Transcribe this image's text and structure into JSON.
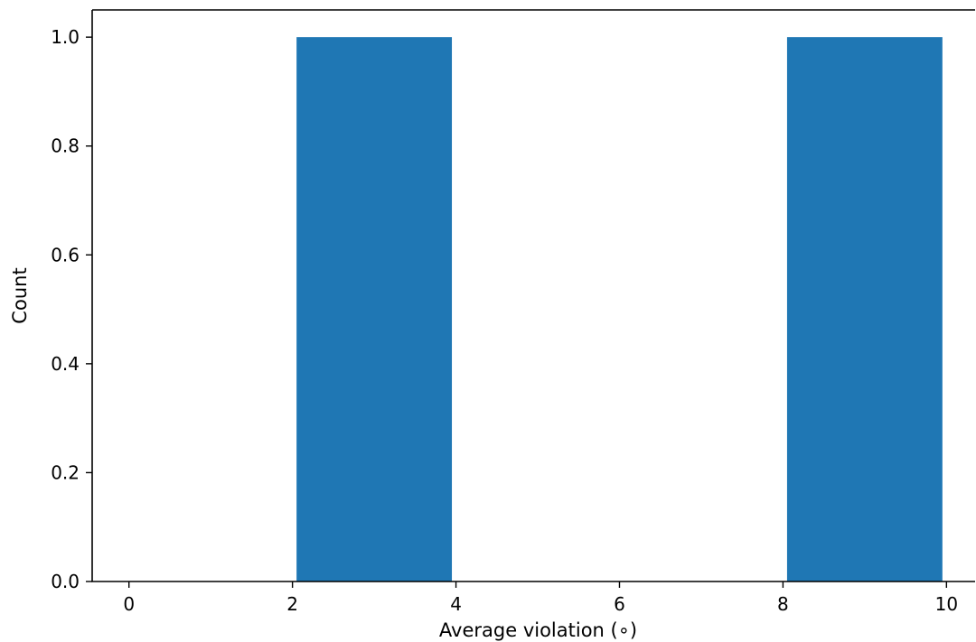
{
  "chart_data": {
    "type": "bar",
    "title": "",
    "xlabel": "Average violation ($^\\circ$)",
    "xlabel_display": "Average violation (∘)",
    "ylabel": "Count",
    "bins": [
      {
        "x0": 2.05,
        "x1": 3.95,
        "count": 1
      },
      {
        "x0": 8.05,
        "x1": 9.95,
        "count": 1
      }
    ],
    "xlim": [
      -0.45,
      10.35
    ],
    "ylim": [
      0,
      1.05
    ],
    "xticks": [
      0,
      2,
      4,
      6,
      8,
      10
    ],
    "xtick_labels": [
      "0",
      "2",
      "4",
      "6",
      "8",
      "10"
    ],
    "yticks": [
      0.0,
      0.2,
      0.4,
      0.6,
      0.8,
      1.0
    ],
    "ytick_labels": [
      "0.0",
      "0.2",
      "0.4",
      "0.6",
      "0.8",
      "1.0"
    ],
    "grid": false,
    "bar_color": "#1f77b4"
  }
}
